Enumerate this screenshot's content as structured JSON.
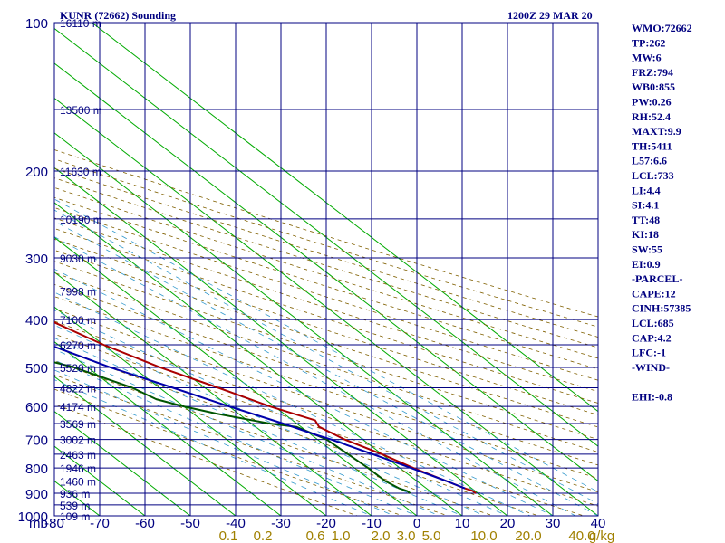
{
  "header": {
    "title": "KUNR (72662) Sounding",
    "datetime": "1200Z 29 MAR 20"
  },
  "indices": [
    "WMO:72662",
    "TP:262",
    "MW:6",
    "FRZ:794",
    "WB0:855",
    "PW:0.26",
    "RH:52.4",
    "MAXT:9.9",
    "TH:5411",
    "L57:6.6",
    "LCL:733",
    "LI:4.4",
    "SI:4.1",
    "TT:48",
    "KI:18",
    "SW:55",
    "EI:0.9",
    "-PARCEL-",
    "CAPE:12",
    "CINH:57385",
    "LCL:685",
    "CAP:4.2",
    "LFC:-1",
    "-WIND-",
    "",
    "EHI:-0.8"
  ],
  "colors": {
    "frame": "#000080",
    "isotherm": "#00aa00",
    "dry_adiabat": "#806000",
    "moist_adiabat": "#3399cc",
    "temperature": "#aa0000",
    "dewpoint": "#005500",
    "parcel": "#0000aa",
    "mixing_ratio_label": "#a08000"
  },
  "chart_data": {
    "type": "line",
    "subtype": "skew-t log-p sounding",
    "y_scale": "log",
    "ylim": [
      1000,
      100
    ],
    "xlim": [
      -80,
      40
    ],
    "y_unit_label": "mb",
    "pressure_ticks": [
      100,
      200,
      300,
      400,
      500,
      600,
      700,
      800,
      900,
      1000
    ],
    "temperature_ticks": [
      -80,
      -70,
      -60,
      -50,
      -40,
      -30,
      -20,
      -10,
      0,
      10,
      20,
      30,
      40
    ],
    "mixing_ratio_labels": [
      "0.1",
      "0.2",
      "0.6",
      "1.0",
      "2.0",
      "3.0",
      "5.0",
      "10.0",
      "20.0",
      "40.0",
      "g/kg"
    ],
    "height_labels": [
      {
        "p": 100,
        "label": "16110 m"
      },
      {
        "p": 150,
        "label": "13500 m"
      },
      {
        "p": 200,
        "label": "11630 m"
      },
      {
        "p": 250,
        "label": "10190 m"
      },
      {
        "p": 300,
        "label": "9030 m"
      },
      {
        "p": 350,
        "label": "7998 m"
      },
      {
        "p": 400,
        "label": "7100 m"
      },
      {
        "p": 450,
        "label": "6270 m"
      },
      {
        "p": 500,
        "label": "5520 m"
      },
      {
        "p": 550,
        "label": "4822 m"
      },
      {
        "p": 600,
        "label": "4174 m"
      },
      {
        "p": 650,
        "label": "3569 m"
      },
      {
        "p": 700,
        "label": "3002 m"
      },
      {
        "p": 750,
        "label": "2463 m"
      },
      {
        "p": 800,
        "label": "1946 m"
      },
      {
        "p": 850,
        "label": "1460 m"
      },
      {
        "p": 900,
        "label": "936 m"
      },
      {
        "p": 950,
        "label": "539 m"
      },
      {
        "p": 1000,
        "label": "109 m"
      }
    ],
    "series": [
      {
        "key": "temperature",
        "points": [
          [
            100,
            -56
          ],
          [
            110,
            -55.5
          ],
          [
            120,
            -55
          ],
          [
            130,
            -54
          ],
          [
            140,
            -53
          ],
          [
            150,
            -52
          ],
          [
            160,
            -51
          ],
          [
            170,
            -51.5
          ],
          [
            180,
            -51
          ],
          [
            190,
            -51
          ],
          [
            200,
            -51
          ],
          [
            210,
            -53
          ],
          [
            220,
            -54
          ],
          [
            230,
            -54
          ],
          [
            240,
            -55
          ],
          [
            250,
            -54
          ],
          [
            260,
            -54
          ],
          [
            270,
            -53
          ],
          [
            300,
            -49
          ],
          [
            350,
            -42
          ],
          [
            400,
            -35
          ],
          [
            450,
            -30
          ],
          [
            500,
            -24
          ],
          [
            550,
            -17
          ],
          [
            600,
            -11
          ],
          [
            640,
            -5
          ],
          [
            660,
            -6
          ],
          [
            700,
            -4
          ],
          [
            750,
            0
          ],
          [
            800,
            3
          ],
          [
            850,
            6.5
          ],
          [
            880,
            8.5
          ],
          [
            890,
            9.5
          ],
          [
            900,
            9.5
          ]
        ]
      },
      {
        "key": "dewpoint",
        "points": [
          [
            200,
            -79
          ],
          [
            210,
            -78
          ],
          [
            220,
            -74
          ],
          [
            230,
            -72
          ],
          [
            240,
            -71
          ],
          [
            250,
            -71
          ],
          [
            260,
            -71
          ],
          [
            300,
            -68
          ],
          [
            350,
            -64
          ],
          [
            380,
            -62
          ],
          [
            400,
            -60
          ],
          [
            420,
            -60
          ],
          [
            450,
            -56
          ],
          [
            500,
            -43
          ],
          [
            550,
            -36
          ],
          [
            580,
            -34
          ],
          [
            600,
            -30
          ],
          [
            620,
            -25
          ],
          [
            650,
            -16
          ],
          [
            660,
            -11
          ],
          [
            700,
            -8
          ],
          [
            800,
            -7
          ],
          [
            850,
            -7
          ],
          [
            880,
            -6
          ],
          [
            890,
            -5
          ],
          [
            900,
            -5
          ]
        ]
      },
      {
        "key": "parcel",
        "points": [
          [
            215,
            -80
          ],
          [
            250,
            -75
          ],
          [
            300,
            -67
          ],
          [
            350,
            -58
          ],
          [
            400,
            -50
          ],
          [
            450,
            -42
          ],
          [
            500,
            -35
          ],
          [
            550,
            -27
          ],
          [
            600,
            -20
          ],
          [
            650,
            -13
          ],
          [
            685,
            -9
          ],
          [
            700,
            -7
          ],
          [
            750,
            -2
          ],
          [
            800,
            2.5
          ],
          [
            850,
            6.5
          ],
          [
            880,
            8.5
          ]
        ]
      }
    ]
  }
}
